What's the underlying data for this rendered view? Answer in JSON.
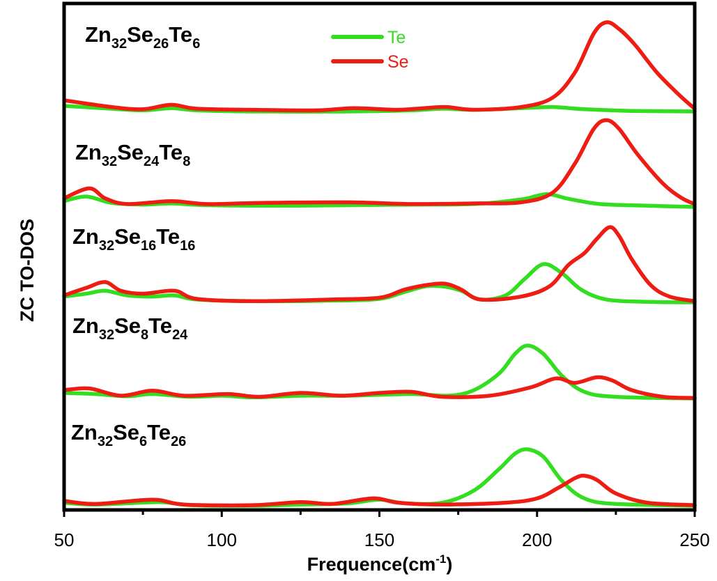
{
  "chart_data": {
    "type": "line",
    "xlabel": "Frequence(cm",
    "xlabel_sup": "-1",
    "xlabel_close": ")",
    "ylabel": "ZC TO-DOS",
    "xlim": [
      50,
      250
    ],
    "x_ticks": [
      "50",
      "100",
      "150",
      "200",
      "250"
    ],
    "grid": false,
    "legend": {
      "placement": "top-center",
      "entries": [
        {
          "name": "Te",
          "color": "#33dd1f"
        },
        {
          "name": "Se",
          "color": "#ee1c13"
        }
      ]
    },
    "colors": {
      "Te": "#33dd1f",
      "Se": "#ee1c13"
    },
    "panels": [
      {
        "label_parts": [
          [
            "Zn",
            ""
          ],
          [
            "32",
            "sub"
          ],
          [
            "Se",
            ""
          ],
          [
            "26",
            "sub"
          ],
          [
            "Te",
            ""
          ],
          [
            "6",
            "sub"
          ]
        ],
        "series": [
          {
            "name": "Te",
            "points": [
              [
                50,
                0.1
              ],
              [
                65,
                0.05
              ],
              [
                75,
                0.02
              ],
              [
                84,
                0.06
              ],
              [
                92,
                0.02
              ],
              [
                110,
                0
              ],
              [
                140,
                0
              ],
              [
                160,
                0.02
              ],
              [
                170,
                0.05
              ],
              [
                180,
                0.03
              ],
              [
                195,
                0.06
              ],
              [
                205,
                0.08
              ],
              [
                215,
                0.04
              ],
              [
                230,
                0.01
              ],
              [
                250,
                0
              ]
            ]
          },
          {
            "name": "Se",
            "points": [
              [
                50,
                0.2
              ],
              [
                65,
                0.08
              ],
              [
                75,
                0.04
              ],
              [
                84,
                0.12
              ],
              [
                92,
                0.05
              ],
              [
                110,
                0.03
              ],
              [
                130,
                0.02
              ],
              [
                142,
                0.06
              ],
              [
                155,
                0.03
              ],
              [
                162,
                0.05
              ],
              [
                171,
                0.08
              ],
              [
                180,
                0.03
              ],
              [
                195,
                0.08
              ],
              [
                205,
                0.25
              ],
              [
                212,
                0.7
              ],
              [
                218,
                1.4
              ],
              [
                222,
                1.6
              ],
              [
                226,
                1.48
              ],
              [
                231,
                1.2
              ],
              [
                238,
                0.7
              ],
              [
                245,
                0.3
              ],
              [
                250,
                0.05
              ]
            ]
          }
        ]
      },
      {
        "label_parts": [
          [
            "Zn",
            ""
          ],
          [
            "32",
            "sub"
          ],
          [
            "Se",
            ""
          ],
          [
            "24",
            "sub"
          ],
          [
            "Te",
            ""
          ],
          [
            "8",
            "sub"
          ]
        ],
        "series": [
          {
            "name": "Te",
            "points": [
              [
                50,
                0.1
              ],
              [
                57,
                0.18
              ],
              [
                65,
                0.07
              ],
              [
                75,
                0.04
              ],
              [
                84,
                0.06
              ],
              [
                95,
                0.03
              ],
              [
                120,
                0.02
              ],
              [
                140,
                0.03
              ],
              [
                160,
                0.04
              ],
              [
                180,
                0.05
              ],
              [
                195,
                0.13
              ],
              [
                203,
                0.22
              ],
              [
                210,
                0.14
              ],
              [
                220,
                0.05
              ],
              [
                235,
                0.02
              ],
              [
                250,
                0
              ]
            ]
          },
          {
            "name": "Se",
            "points": [
              [
                50,
                0.15
              ],
              [
                58,
                0.32
              ],
              [
                63,
                0.15
              ],
              [
                70,
                0.05
              ],
              [
                84,
                0.1
              ],
              [
                95,
                0.05
              ],
              [
                113,
                0.07
              ],
              [
                140,
                0.08
              ],
              [
                160,
                0.05
              ],
              [
                180,
                0.06
              ],
              [
                195,
                0.08
              ],
              [
                205,
                0.25
              ],
              [
                212,
                0.75
              ],
              [
                218,
                1.35
              ],
              [
                222,
                1.5
              ],
              [
                226,
                1.35
              ],
              [
                232,
                0.9
              ],
              [
                240,
                0.4
              ],
              [
                246,
                0.15
              ],
              [
                250,
                0.05
              ]
            ]
          }
        ]
      },
      {
        "label_parts": [
          [
            "Zn",
            ""
          ],
          [
            "32",
            "sub"
          ],
          [
            "Se",
            ""
          ],
          [
            "16",
            "sub"
          ],
          [
            "Te",
            ""
          ],
          [
            "16",
            "sub"
          ]
        ],
        "series": [
          {
            "name": "Te",
            "points": [
              [
                50,
                0.1
              ],
              [
                57,
                0.15
              ],
              [
                63,
                0.2
              ],
              [
                70,
                0.12
              ],
              [
                78,
                0.1
              ],
              [
                85,
                0.12
              ],
              [
                92,
                0.05
              ],
              [
                110,
                0.02
              ],
              [
                135,
                0.03
              ],
              [
                150,
                0.06
              ],
              [
                158,
                0.18
              ],
              [
                165,
                0.28
              ],
              [
                171,
                0.27
              ],
              [
                176,
                0.2
              ],
              [
                182,
                0.05
              ],
              [
                190,
                0.12
              ],
              [
                196,
                0.4
              ],
              [
                202,
                0.66
              ],
              [
                208,
                0.5
              ],
              [
                214,
                0.22
              ],
              [
                222,
                0.05
              ],
              [
                235,
                0.01
              ],
              [
                250,
                0
              ]
            ]
          },
          {
            "name": "Se",
            "points": [
              [
                50,
                0.12
              ],
              [
                57,
                0.25
              ],
              [
                63,
                0.35
              ],
              [
                68,
                0.2
              ],
              [
                75,
                0.15
              ],
              [
                85,
                0.2
              ],
              [
                92,
                0.06
              ],
              [
                110,
                0.02
              ],
              [
                135,
                0.05
              ],
              [
                150,
                0.08
              ],
              [
                158,
                0.22
              ],
              [
                165,
                0.3
              ],
              [
                171,
                0.32
              ],
              [
                176,
                0.22
              ],
              [
                182,
                0.05
              ],
              [
                195,
                0.1
              ],
              [
                204,
                0.28
              ],
              [
                210,
                0.65
              ],
              [
                215,
                0.85
              ],
              [
                219,
                1.1
              ],
              [
                223,
                1.3
              ],
              [
                226,
                1.15
              ],
              [
                230,
                0.75
              ],
              [
                236,
                0.3
              ],
              [
                242,
                0.1
              ],
              [
                250,
                0.02
              ]
            ]
          }
        ]
      },
      {
        "label_parts": [
          [
            "Zn",
            ""
          ],
          [
            "32",
            "sub"
          ],
          [
            "Se",
            ""
          ],
          [
            "8",
            "sub"
          ],
          [
            "Te",
            ""
          ],
          [
            "24",
            "sub"
          ]
        ],
        "series": [
          {
            "name": "Te",
            "points": [
              [
                50,
                0.1
              ],
              [
                60,
                0.08
              ],
              [
                70,
                0.04
              ],
              [
                78,
                0.08
              ],
              [
                90,
                0.03
              ],
              [
                100,
                0.05
              ],
              [
                110,
                0.02
              ],
              [
                125,
                0.05
              ],
              [
                140,
                0.05
              ],
              [
                160,
                0.08
              ],
              [
                172,
                0.05
              ],
              [
                180,
                0.15
              ],
              [
                188,
                0.45
              ],
              [
                193,
                0.8
              ],
              [
                197,
                0.95
              ],
              [
                202,
                0.8
              ],
              [
                208,
                0.4
              ],
              [
                215,
                0.12
              ],
              [
                225,
                0.03
              ],
              [
                250,
                0
              ]
            ]
          },
          {
            "name": "Se",
            "points": [
              [
                50,
                0.15
              ],
              [
                58,
                0.18
              ],
              [
                68,
                0.05
              ],
              [
                78,
                0.14
              ],
              [
                88,
                0.05
              ],
              [
                102,
                0.08
              ],
              [
                112,
                0.03
              ],
              [
                125,
                0.1
              ],
              [
                138,
                0.05
              ],
              [
                150,
                0.1
              ],
              [
                160,
                0.12
              ],
              [
                170,
                0.03
              ],
              [
                185,
                0.05
              ],
              [
                198,
                0.2
              ],
              [
                206,
                0.36
              ],
              [
                212,
                0.28
              ],
              [
                219,
                0.38
              ],
              [
                224,
                0.32
              ],
              [
                230,
                0.15
              ],
              [
                240,
                0.03
              ],
              [
                250,
                0.01
              ]
            ]
          }
        ]
      },
      {
        "label_parts": [
          [
            "Zn",
            ""
          ],
          [
            "32",
            "sub"
          ],
          [
            "Se",
            ""
          ],
          [
            "6",
            "sub"
          ],
          [
            "Te",
            ""
          ],
          [
            "26",
            "sub"
          ]
        ],
        "series": [
          {
            "name": "Te",
            "points": [
              [
                50,
                0.05
              ],
              [
                60,
                0.02
              ],
              [
                80,
                0.06
              ],
              [
                90,
                0.01
              ],
              [
                110,
                0
              ],
              [
                125,
                0.02
              ],
              [
                140,
                0.04
              ],
              [
                150,
                0.1
              ],
              [
                158,
                0.04
              ],
              [
                170,
                0.05
              ],
              [
                180,
                0.25
              ],
              [
                188,
                0.6
              ],
              [
                193,
                0.85
              ],
              [
                197,
                0.92
              ],
              [
                202,
                0.8
              ],
              [
                208,
                0.4
              ],
              [
                215,
                0.12
              ],
              [
                225,
                0.03
              ],
              [
                250,
                0
              ]
            ]
          },
          {
            "name": "Se",
            "points": [
              [
                50,
                0.08
              ],
              [
                60,
                0.03
              ],
              [
                78,
                0.1
              ],
              [
                88,
                0.02
              ],
              [
                110,
                0.01
              ],
              [
                125,
                0.06
              ],
              [
                135,
                0.03
              ],
              [
                148,
                0.12
              ],
              [
                156,
                0.05
              ],
              [
                170,
                0.02
              ],
              [
                190,
                0.05
              ],
              [
                200,
                0.12
              ],
              [
                207,
                0.3
              ],
              [
                212,
                0.45
              ],
              [
                215,
                0.49
              ],
              [
                219,
                0.42
              ],
              [
                225,
                0.2
              ],
              [
                235,
                0.05
              ],
              [
                250,
                0.01
              ]
            ]
          }
        ]
      }
    ]
  }
}
